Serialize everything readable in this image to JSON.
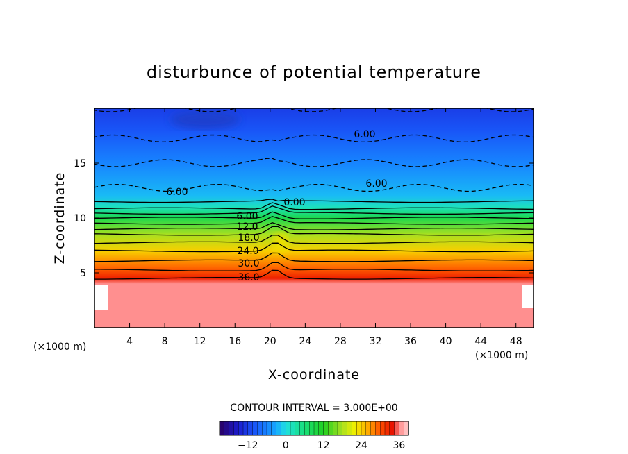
{
  "chart_data": {
    "type": "heatmap",
    "title": "disturbunce of potential temperature",
    "xlabel": "X-coordinate",
    "ylabel": "Z-coordinate",
    "x_unit": "(×1000 m)",
    "y_unit": "(×1000 m)",
    "xlim": [
      0,
      50
    ],
    "ylim": [
      0,
      20
    ],
    "x_ticks": [
      "4",
      "8",
      "12",
      "16",
      "20",
      "24",
      "28",
      "32",
      "36",
      "40",
      "44",
      "48"
    ],
    "y_ticks": [
      "5",
      "10",
      "15"
    ],
    "contour_interval_text": "CONTOUR INTERVAL = 3.000E+00",
    "colorbar": {
      "min": -21,
      "max": 39,
      "ticks": [
        "-12",
        "0",
        "12",
        "24",
        "36"
      ]
    },
    "contour_labels": [
      "6.00",
      "6.00",
      "6.00",
      "0.00",
      "6.00",
      "12.0",
      "18.0",
      "24.0",
      "30.0",
      "36.0"
    ],
    "values_by_height": [
      {
        "z": 0,
        "value": 36
      },
      {
        "z": 4,
        "value": 37
      },
      {
        "z": 4.5,
        "value": 33
      },
      {
        "z": 5.5,
        "value": 29
      },
      {
        "z": 7,
        "value": 24
      },
      {
        "z": 8.5,
        "value": 18
      },
      {
        "z": 10,
        "value": 9
      },
      {
        "z": 11,
        "value": 2
      },
      {
        "z": 12,
        "value": -2
      },
      {
        "z": 15,
        "value": -6
      },
      {
        "z": 18,
        "value": -10
      },
      {
        "z": 20,
        "value": -12
      }
    ]
  }
}
